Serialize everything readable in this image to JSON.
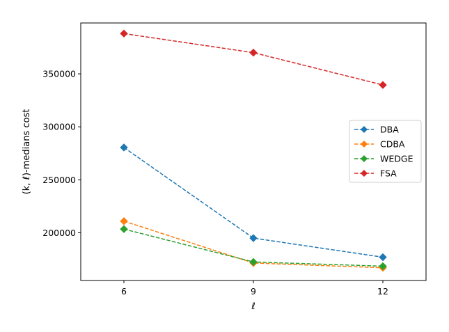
{
  "chart_data": {
    "type": "line",
    "xlabel": "ℓ",
    "ylabel": "(k, ℓ)-medians cost",
    "x": [
      6,
      9,
      12
    ],
    "xticks": [
      "6",
      "9",
      "12"
    ],
    "xlim": [
      5,
      13
    ],
    "ylim": [
      155000,
      398000
    ],
    "yticks": [
      200000,
      250000,
      300000,
      350000
    ],
    "ytick_labels": [
      "200000",
      "250000",
      "300000",
      "350000"
    ],
    "grid": false,
    "legend_position": "center-right",
    "series": [
      {
        "name": "DBA",
        "color": "#1f77b4",
        "values": [
          280500,
          195000,
          177000
        ]
      },
      {
        "name": "CDBA",
        "color": "#ff7f0e",
        "values": [
          211000,
          171500,
          167000
        ]
      },
      {
        "name": "WEDGE",
        "color": "#2ca02c",
        "values": [
          203500,
          172500,
          168500
        ]
      },
      {
        "name": "FSA",
        "color": "#d62728",
        "values": [
          388000,
          370000,
          339500
        ]
      }
    ]
  }
}
